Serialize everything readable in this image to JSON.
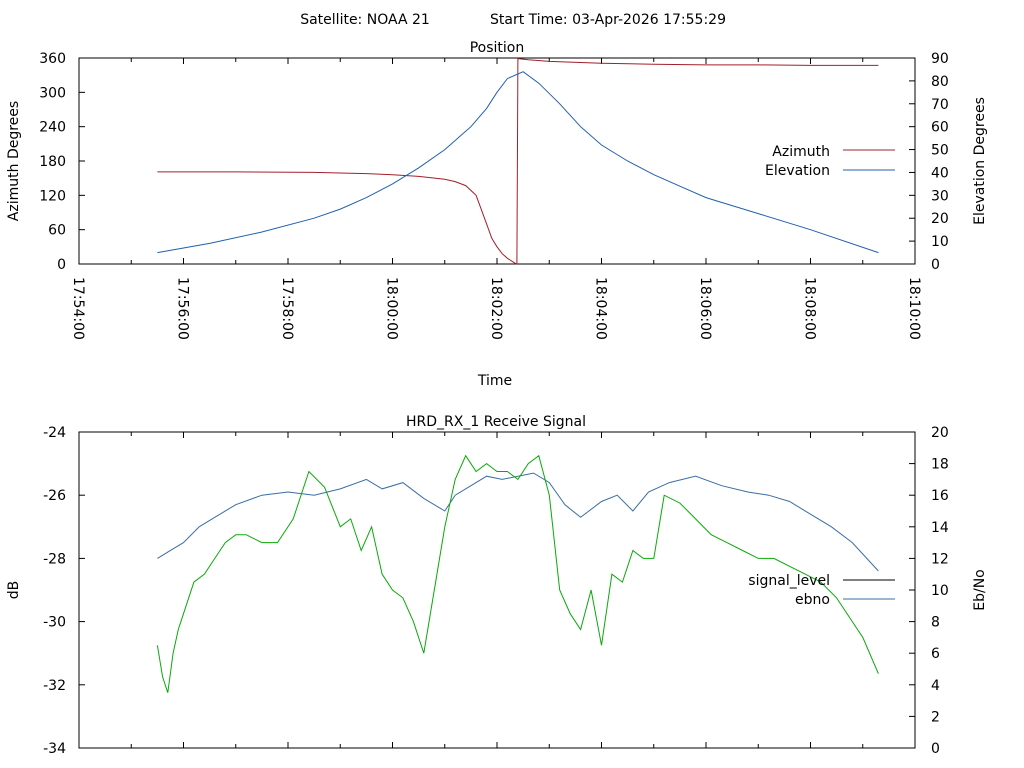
{
  "header": {
    "satellite_label": "Satellite: NOAA 21",
    "start_time_label": "Start Time: 03-Apr-2026 17:55:29"
  },
  "chart_data": [
    {
      "type": "line",
      "title": "Position",
      "xlabel": "Time",
      "ylabel": "Azimuth Degrees",
      "y2label": "Elevation Degrees",
      "x_tick_labels": [
        "17:54:00",
        "17:56:00",
        "17:58:00",
        "18:00:00",
        "18:02:00",
        "18:04:00",
        "18:06:00",
        "18:08:00",
        "18:10:00"
      ],
      "xlim_minutes": [
        0,
        16
      ],
      "ylim": [
        0,
        360
      ],
      "y_ticks": [
        0,
        60,
        120,
        180,
        240,
        300,
        360
      ],
      "y2lim": [
        0,
        90
      ],
      "y2_ticks": [
        0,
        10,
        20,
        30,
        40,
        50,
        60,
        70,
        80,
        90
      ],
      "legend_position": "right",
      "series": [
        {
          "name": "Azimuth",
          "axis": "y",
          "color": "#a0202a",
          "x": [
            1.5,
            3,
            4.5,
            5.5,
            6,
            6.5,
            7,
            7.2,
            7.4,
            7.6,
            7.8,
            7.9,
            8.0,
            8.1,
            8.2,
            8.3,
            8.35,
            8.38,
            8.4,
            8.6,
            9,
            10,
            11,
            12,
            13,
            14,
            15.3
          ],
          "values": [
            161,
            161,
            160,
            158,
            156,
            153,
            148,
            144,
            137,
            120,
            70,
            45,
            30,
            18,
            10,
            4,
            1,
            0,
            359,
            357,
            354,
            351,
            349,
            348,
            348,
            347,
            347
          ]
        },
        {
          "name": "Elevation",
          "axis": "y2",
          "color": "#2060b0",
          "x": [
            1.5,
            2.5,
            3.5,
            4.5,
            5,
            5.5,
            6,
            6.5,
            7,
            7.5,
            7.8,
            8.0,
            8.2,
            8.5,
            8.8,
            9.2,
            9.6,
            10,
            10.5,
            11,
            11.5,
            12,
            13,
            14,
            15.3
          ],
          "values": [
            5,
            9,
            14,
            20,
            24,
            29,
            35,
            42,
            50,
            60,
            68,
            75,
            81,
            84,
            79,
            70,
            60,
            52,
            45,
            39,
            34,
            29,
            22,
            15,
            5
          ]
        }
      ]
    },
    {
      "type": "line",
      "title": "HRD_RX_1 Receive Signal",
      "xlabel": "",
      "ylabel": "dB",
      "y2label": "Eb/No",
      "xlim_minutes": [
        0,
        16
      ],
      "ylim": [
        -34,
        -24
      ],
      "y_ticks": [
        -34,
        -32,
        -30,
        -28,
        -26,
        -24
      ],
      "y2lim": [
        0,
        20
      ],
      "y2_ticks": [
        0,
        2,
        4,
        6,
        8,
        10,
        12,
        14,
        16,
        18,
        20
      ],
      "legend_position": "right",
      "series": [
        {
          "name": "signal_level",
          "axis": "y",
          "color": "#3a6ea5",
          "x": [
            1.5,
            1.7,
            2.0,
            2.3,
            2.6,
            3.0,
            3.5,
            4.0,
            4.5,
            5.0,
            5.5,
            5.8,
            6.2,
            6.6,
            7.0,
            7.2,
            7.5,
            7.8,
            8.1,
            8.4,
            8.7,
            9.0,
            9.3,
            9.6,
            10.0,
            10.3,
            10.6,
            10.9,
            11.3,
            11.8,
            12.3,
            12.8,
            13.2,
            13.6,
            14.0,
            14.4,
            14.8,
            15.3
          ],
          "values": [
            -28.0,
            -27.8,
            -27.5,
            -27.0,
            -26.7,
            -26.3,
            -26.0,
            -25.9,
            -26.0,
            -25.8,
            -25.5,
            -25.8,
            -25.6,
            -26.1,
            -26.5,
            -26.0,
            -25.7,
            -25.4,
            -25.5,
            -25.4,
            -25.3,
            -25.6,
            -26.3,
            -26.7,
            -26.2,
            -26.0,
            -26.5,
            -25.9,
            -25.6,
            -25.4,
            -25.7,
            -25.9,
            -26.0,
            -26.2,
            -26.6,
            -27.0,
            -27.5,
            -28.4
          ]
        },
        {
          "name": "ebno",
          "axis": "y2",
          "color": "#0aa80a",
          "x": [
            1.5,
            1.6,
            1.7,
            1.8,
            1.9,
            2.0,
            2.2,
            2.4,
            2.6,
            2.8,
            3.0,
            3.2,
            3.5,
            3.8,
            4.1,
            4.4,
            4.7,
            5.0,
            5.2,
            5.4,
            5.6,
            5.8,
            6.0,
            6.2,
            6.4,
            6.6,
            6.8,
            7.0,
            7.2,
            7.4,
            7.6,
            7.8,
            8.0,
            8.2,
            8.4,
            8.6,
            8.8,
            9.0,
            9.2,
            9.4,
            9.6,
            9.8,
            10.0,
            10.2,
            10.4,
            10.6,
            10.8,
            11.0,
            11.2,
            11.5,
            11.8,
            12.1,
            12.4,
            12.7,
            13.0,
            13.3,
            13.6,
            13.9,
            14.2,
            14.5,
            14.8,
            15.0,
            15.3
          ],
          "values": [
            6.5,
            4.5,
            3.5,
            6.0,
            7.5,
            8.5,
            10.5,
            11.0,
            12.0,
            13.0,
            13.5,
            13.5,
            13.0,
            13.0,
            14.5,
            17.5,
            16.5,
            14.0,
            14.5,
            12.5,
            14.0,
            11.0,
            10.0,
            9.5,
            8.0,
            6.0,
            10.0,
            14.0,
            17.0,
            18.5,
            17.5,
            18.0,
            17.5,
            17.5,
            17.0,
            18.0,
            18.5,
            16.0,
            10.0,
            8.5,
            7.5,
            10.0,
            6.5,
            11.0,
            10.5,
            12.5,
            12.0,
            12.0,
            16.0,
            15.5,
            14.5,
            13.5,
            13.0,
            12.5,
            12.0,
            12.0,
            11.5,
            11.0,
            10.5,
            9.5,
            8.0,
            7.0,
            4.7
          ]
        }
      ]
    }
  ]
}
